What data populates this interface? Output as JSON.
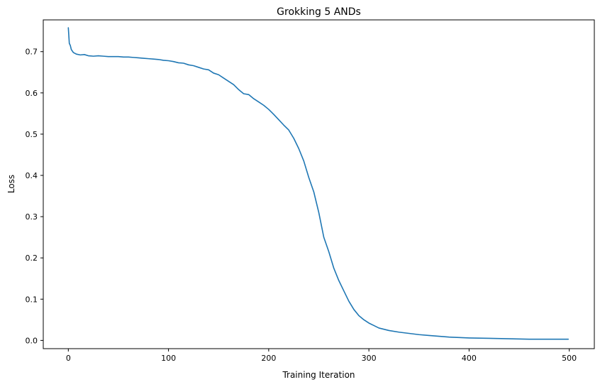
{
  "chart_data": {
    "type": "line",
    "title": "Grokking 5 ANDs",
    "xlabel": "Training Iteration",
    "ylabel": "Loss",
    "xlim": [
      -25,
      525
    ],
    "ylim": [
      -0.02,
      0.777
    ],
    "x_ticks": [
      0,
      100,
      200,
      300,
      400,
      500
    ],
    "y_ticks": [
      0.0,
      0.1,
      0.2,
      0.3,
      0.4,
      0.5,
      0.6,
      0.7
    ],
    "x_tick_labels": [
      "0",
      "100",
      "200",
      "300",
      "400",
      "500"
    ],
    "y_tick_labels": [
      "0.0",
      "0.1",
      "0.2",
      "0.3",
      "0.4",
      "0.5",
      "0.6",
      "0.7"
    ],
    "grid": false,
    "series": [
      {
        "name": "loss",
        "color": "#1f77b4",
        "x": [
          0,
          1,
          2,
          3,
          5,
          8,
          12,
          16,
          20,
          25,
          30,
          35,
          40,
          45,
          50,
          55,
          60,
          65,
          70,
          75,
          80,
          85,
          90,
          95,
          100,
          105,
          110,
          115,
          120,
          125,
          130,
          135,
          140,
          145,
          150,
          155,
          160,
          165,
          170,
          175,
          180,
          185,
          190,
          195,
          200,
          205,
          210,
          215,
          220,
          225,
          230,
          235,
          240,
          245,
          250,
          255,
          260,
          265,
          270,
          275,
          280,
          285,
          290,
          295,
          300,
          305,
          310,
          320,
          330,
          340,
          350,
          360,
          370,
          380,
          390,
          400,
          420,
          440,
          460,
          480,
          499
        ],
        "y": [
          0.758,
          0.72,
          0.715,
          0.705,
          0.698,
          0.694,
          0.692,
          0.693,
          0.69,
          0.689,
          0.69,
          0.689,
          0.688,
          0.688,
          0.688,
          0.687,
          0.687,
          0.686,
          0.685,
          0.684,
          0.683,
          0.682,
          0.681,
          0.679,
          0.678,
          0.676,
          0.673,
          0.672,
          0.668,
          0.666,
          0.662,
          0.658,
          0.656,
          0.648,
          0.644,
          0.636,
          0.628,
          0.62,
          0.608,
          0.598,
          0.596,
          0.586,
          0.578,
          0.57,
          0.56,
          0.548,
          0.535,
          0.522,
          0.51,
          0.49,
          0.465,
          0.435,
          0.395,
          0.36,
          0.31,
          0.25,
          0.215,
          0.175,
          0.145,
          0.12,
          0.095,
          0.075,
          0.06,
          0.05,
          0.042,
          0.036,
          0.03,
          0.024,
          0.02,
          0.017,
          0.014,
          0.012,
          0.01,
          0.008,
          0.007,
          0.006,
          0.005,
          0.004,
          0.003,
          0.003,
          0.003
        ]
      }
    ]
  }
}
